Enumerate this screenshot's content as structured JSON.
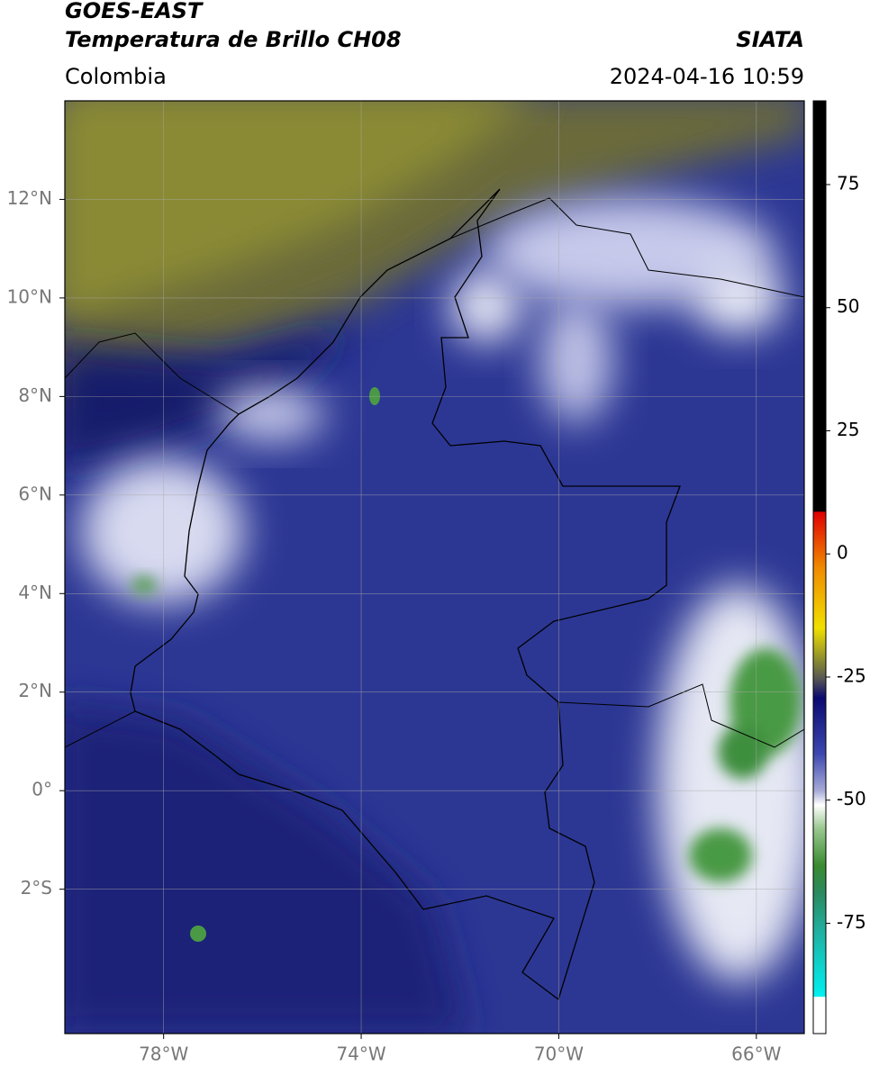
{
  "header": {
    "source": "GOES-EAST",
    "product": "Temperatura de Brillo CH08",
    "region": "Colombia",
    "agency": "SIATA",
    "datetime": "2024-04-16 10:59"
  },
  "map": {
    "xlim": [
      -80,
      -65.03
    ],
    "ylim": [
      -4.93,
      14
    ],
    "xticks": [
      {
        "value": -78,
        "label": "78°W"
      },
      {
        "value": -74,
        "label": "74°W"
      },
      {
        "value": -70,
        "label": "70°W"
      },
      {
        "value": -66,
        "label": "66°W"
      }
    ],
    "yticks": [
      {
        "value": 12,
        "label": "12°N"
      },
      {
        "value": 10,
        "label": "10°N"
      },
      {
        "value": 8,
        "label": "8°N"
      },
      {
        "value": 6,
        "label": "6°N"
      },
      {
        "value": 4,
        "label": "4°N"
      },
      {
        "value": 2,
        "label": "2°N"
      },
      {
        "value": 0,
        "label": "0°"
      },
      {
        "value": -2,
        "label": "2°S"
      }
    ],
    "grid": true
  },
  "colorbar": {
    "lim": [
      -97.4,
      92
    ],
    "ticks": [
      75,
      50,
      25,
      0,
      -25,
      -50,
      -75
    ]
  }
}
